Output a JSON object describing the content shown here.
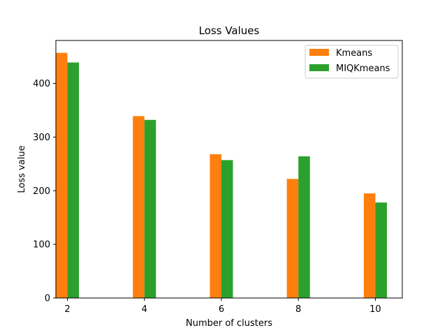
{
  "chart_data": {
    "type": "bar",
    "title": "Loss Values",
    "xlabel": "Number of clusters",
    "ylabel": "Loss value",
    "categories": [
      "2",
      "4",
      "6",
      "8",
      "10"
    ],
    "x": [
      2,
      4,
      6,
      8,
      10
    ],
    "xlim": [
      1.7,
      10.7
    ],
    "ylim": [
      0,
      480
    ],
    "yticks": [
      0,
      100,
      200,
      300,
      400
    ],
    "grid": false,
    "legend_position": "top-right",
    "series": [
      {
        "name": "Kmeans",
        "color": "#ff7f0e",
        "values": [
          457,
          339,
          268,
          222,
          195
        ]
      },
      {
        "name": "MIQKmeans",
        "color": "#2ca02c",
        "values": [
          439,
          332,
          257,
          264,
          178
        ]
      }
    ]
  }
}
